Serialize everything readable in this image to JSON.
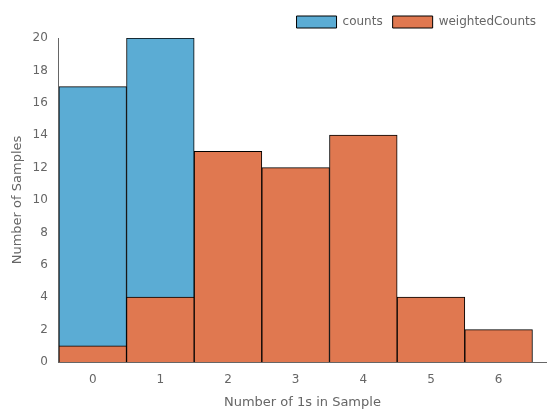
{
  "chart_data": {
    "type": "bar",
    "xlabel": "Number of 1s in Sample",
    "ylabel": "Number of Samples",
    "x": [
      0,
      1,
      2,
      3,
      4,
      5,
      6
    ],
    "series": [
      {
        "name": "counts",
        "color": "#5BACD4",
        "values": [
          17,
          20,
          0,
          0,
          0,
          0,
          0
        ]
      },
      {
        "name": "weightedCounts",
        "color": "#E07850",
        "values": [
          1,
          4,
          13,
          12,
          14,
          4,
          2
        ]
      }
    ],
    "xlim": [
      -0.5,
      6.7
    ],
    "xticks": [
      0,
      1,
      2,
      3,
      4,
      5,
      6
    ],
    "ylim": [
      0,
      20
    ],
    "yticks": [
      0,
      2,
      4,
      6,
      8,
      10,
      12,
      14,
      16,
      18,
      20
    ],
    "grid": false,
    "legend": "upper right"
  }
}
